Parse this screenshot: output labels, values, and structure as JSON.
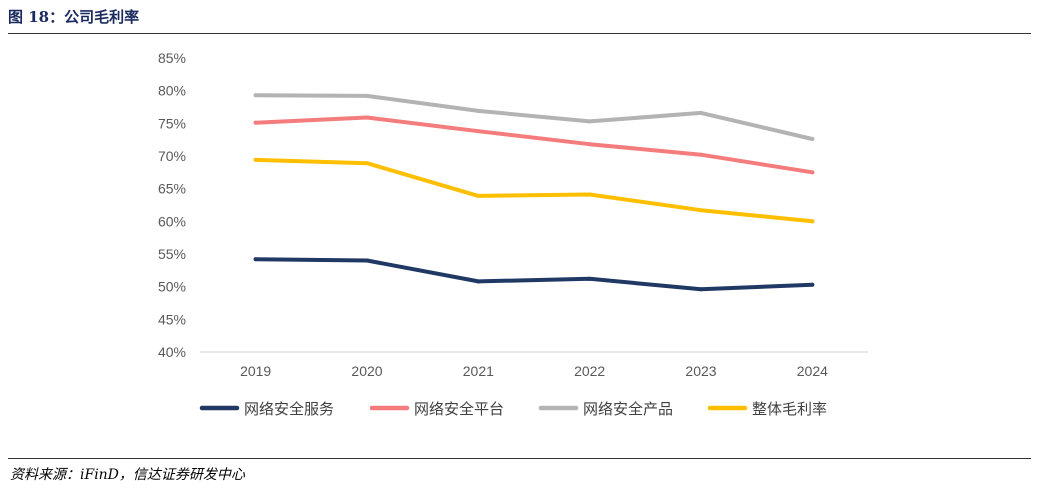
{
  "figure": {
    "title": "图 18：公司毛利率",
    "source": "资料来源：iFinD，信达证券研发中心"
  },
  "chart_data": {
    "type": "line",
    "title": "",
    "xlabel": "",
    "ylabel": "",
    "categories": [
      "2019",
      "2020",
      "2021",
      "2022",
      "2023",
      "2024"
    ],
    "ylim": [
      40,
      85
    ],
    "yticks": [
      40,
      45,
      50,
      55,
      60,
      65,
      70,
      75,
      80,
      85
    ],
    "ytick_labels": [
      "40%",
      "45%",
      "50%",
      "55%",
      "60%",
      "65%",
      "70%",
      "75%",
      "80%",
      "85%"
    ],
    "grid": false,
    "legend_position": "bottom",
    "series": [
      {
        "name": "网络安全服务",
        "color": "#203864",
        "values": [
          54.2,
          54.0,
          50.8,
          51.2,
          49.6,
          50.3
        ]
      },
      {
        "name": "网络安全平台",
        "color": "#f47c7c",
        "values": [
          75.1,
          75.9,
          73.8,
          71.8,
          70.2,
          67.5
        ]
      },
      {
        "name": "网络安全产品",
        "color": "#b3b3b3",
        "values": [
          79.3,
          79.2,
          76.9,
          75.3,
          76.6,
          72.6
        ]
      },
      {
        "name": "整体毛利率",
        "color": "#fdbf00",
        "values": [
          69.4,
          68.9,
          63.9,
          64.1,
          61.7,
          60.0
        ]
      }
    ]
  }
}
